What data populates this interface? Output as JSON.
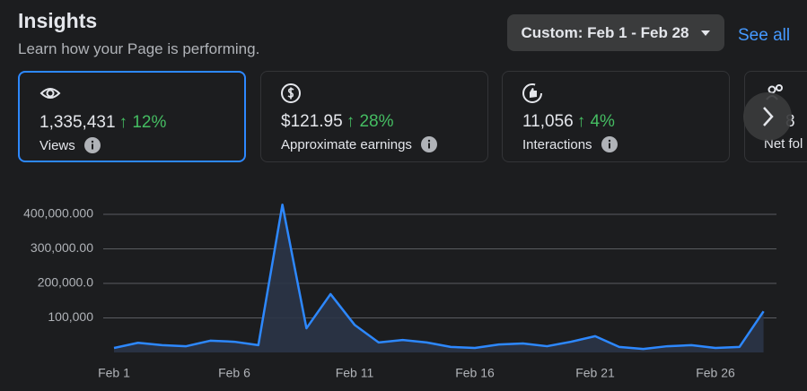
{
  "header": {
    "title": "Insights",
    "subtitle": "Learn how your Page is performing.",
    "date_range": "Custom: Feb 1 - Feb 28",
    "see_all": "See all"
  },
  "cards": [
    {
      "value": "1,335,431",
      "change": "12%",
      "label": "Views"
    },
    {
      "value": "$121.95",
      "change": "28%",
      "label": "Approximate earnings"
    },
    {
      "value": "11,056",
      "change": "4%",
      "label": "Interactions"
    },
    {
      "value": "8",
      "label": "Net fol"
    }
  ],
  "chart_data": {
    "type": "line",
    "categories": [
      "Feb 1",
      null,
      null,
      null,
      null,
      "Feb 6",
      null,
      null,
      null,
      null,
      "Feb 11",
      null,
      null,
      null,
      null,
      "Feb 16",
      null,
      null,
      null,
      null,
      "Feb 21",
      null,
      null,
      null,
      null,
      "Feb 26",
      null,
      null
    ],
    "series": [
      {
        "color": "#2d88ff",
        "values": [
          13000,
          28000,
          21000,
          18000,
          34000,
          31000,
          21000,
          428000,
          70000,
          169000,
          80000,
          29000,
          36000,
          29000,
          16000,
          13000,
          23000,
          26000,
          18000,
          31000,
          47000,
          16000,
          10000,
          18000,
          21000,
          13000,
          16000,
          119000
        ]
      }
    ],
    "ylim": [
      0,
      440000
    ],
    "yticks": [
      {
        "value": 100000,
        "label": "100,000"
      },
      {
        "value": 200000,
        "label": "200,000.0"
      },
      {
        "value": 300000,
        "label": "300,000.00"
      },
      {
        "value": 400000,
        "label": "400,000.000"
      }
    ],
    "grid": true
  }
}
